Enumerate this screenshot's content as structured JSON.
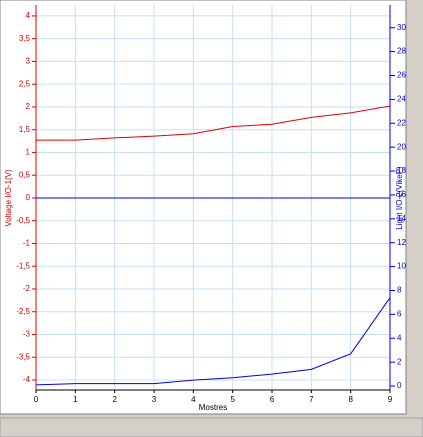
{
  "chart_data": {
    "type": "line",
    "x_label": "Mostres",
    "y_label": "Voltage I/O-1(V)",
    "y2_label": "Light I/O-2(VikeP)",
    "x": [
      0,
      1,
      2,
      3,
      4,
      5,
      6,
      7,
      8,
      9
    ],
    "xlim": [
      0,
      9
    ],
    "xticks": [
      0,
      1,
      2,
      3,
      4,
      5,
      6,
      7,
      8,
      9
    ],
    "ylim": [
      -4.22,
      4.24
    ],
    "yticks": [
      4,
      {
        "value": 3.5,
        "label": "3,5"
      },
      3,
      {
        "value": 2.5,
        "label": "2,5"
      },
      2,
      {
        "value": 1.5,
        "label": "1,5"
      },
      1,
      {
        "value": 0.5,
        "label": "0,5"
      },
      0,
      {
        "value": -0.5,
        "label": "-0,5"
      },
      -1,
      {
        "value": -1.5,
        "label": "-1,5"
      },
      -2,
      {
        "value": -2.5,
        "label": "-2,5"
      },
      -3,
      {
        "value": -3.5,
        "label": "-3,5"
      },
      -4
    ],
    "y2lim": [
      -0.33,
      31.9
    ],
    "y2ticks": [
      0,
      2,
      4,
      6,
      8,
      10,
      12,
      14,
      16,
      18,
      20,
      22,
      24,
      26,
      28,
      30
    ],
    "grid": true,
    "series": [
      {
        "name": "Voltage",
        "color": "#e00000",
        "values": [
          1.27,
          1.27,
          1.32,
          1.36,
          1.41,
          1.57,
          1.62,
          1.77,
          1.87,
          2.02
        ]
      },
      {
        "name": "Light",
        "color": "#0000e0",
        "axis": "y2",
        "values": [
          0.1,
          0.2,
          0.2,
          0.2,
          0.5,
          0.7,
          1.0,
          1.4,
          2.7,
          7.4
        ]
      }
    ]
  }
}
